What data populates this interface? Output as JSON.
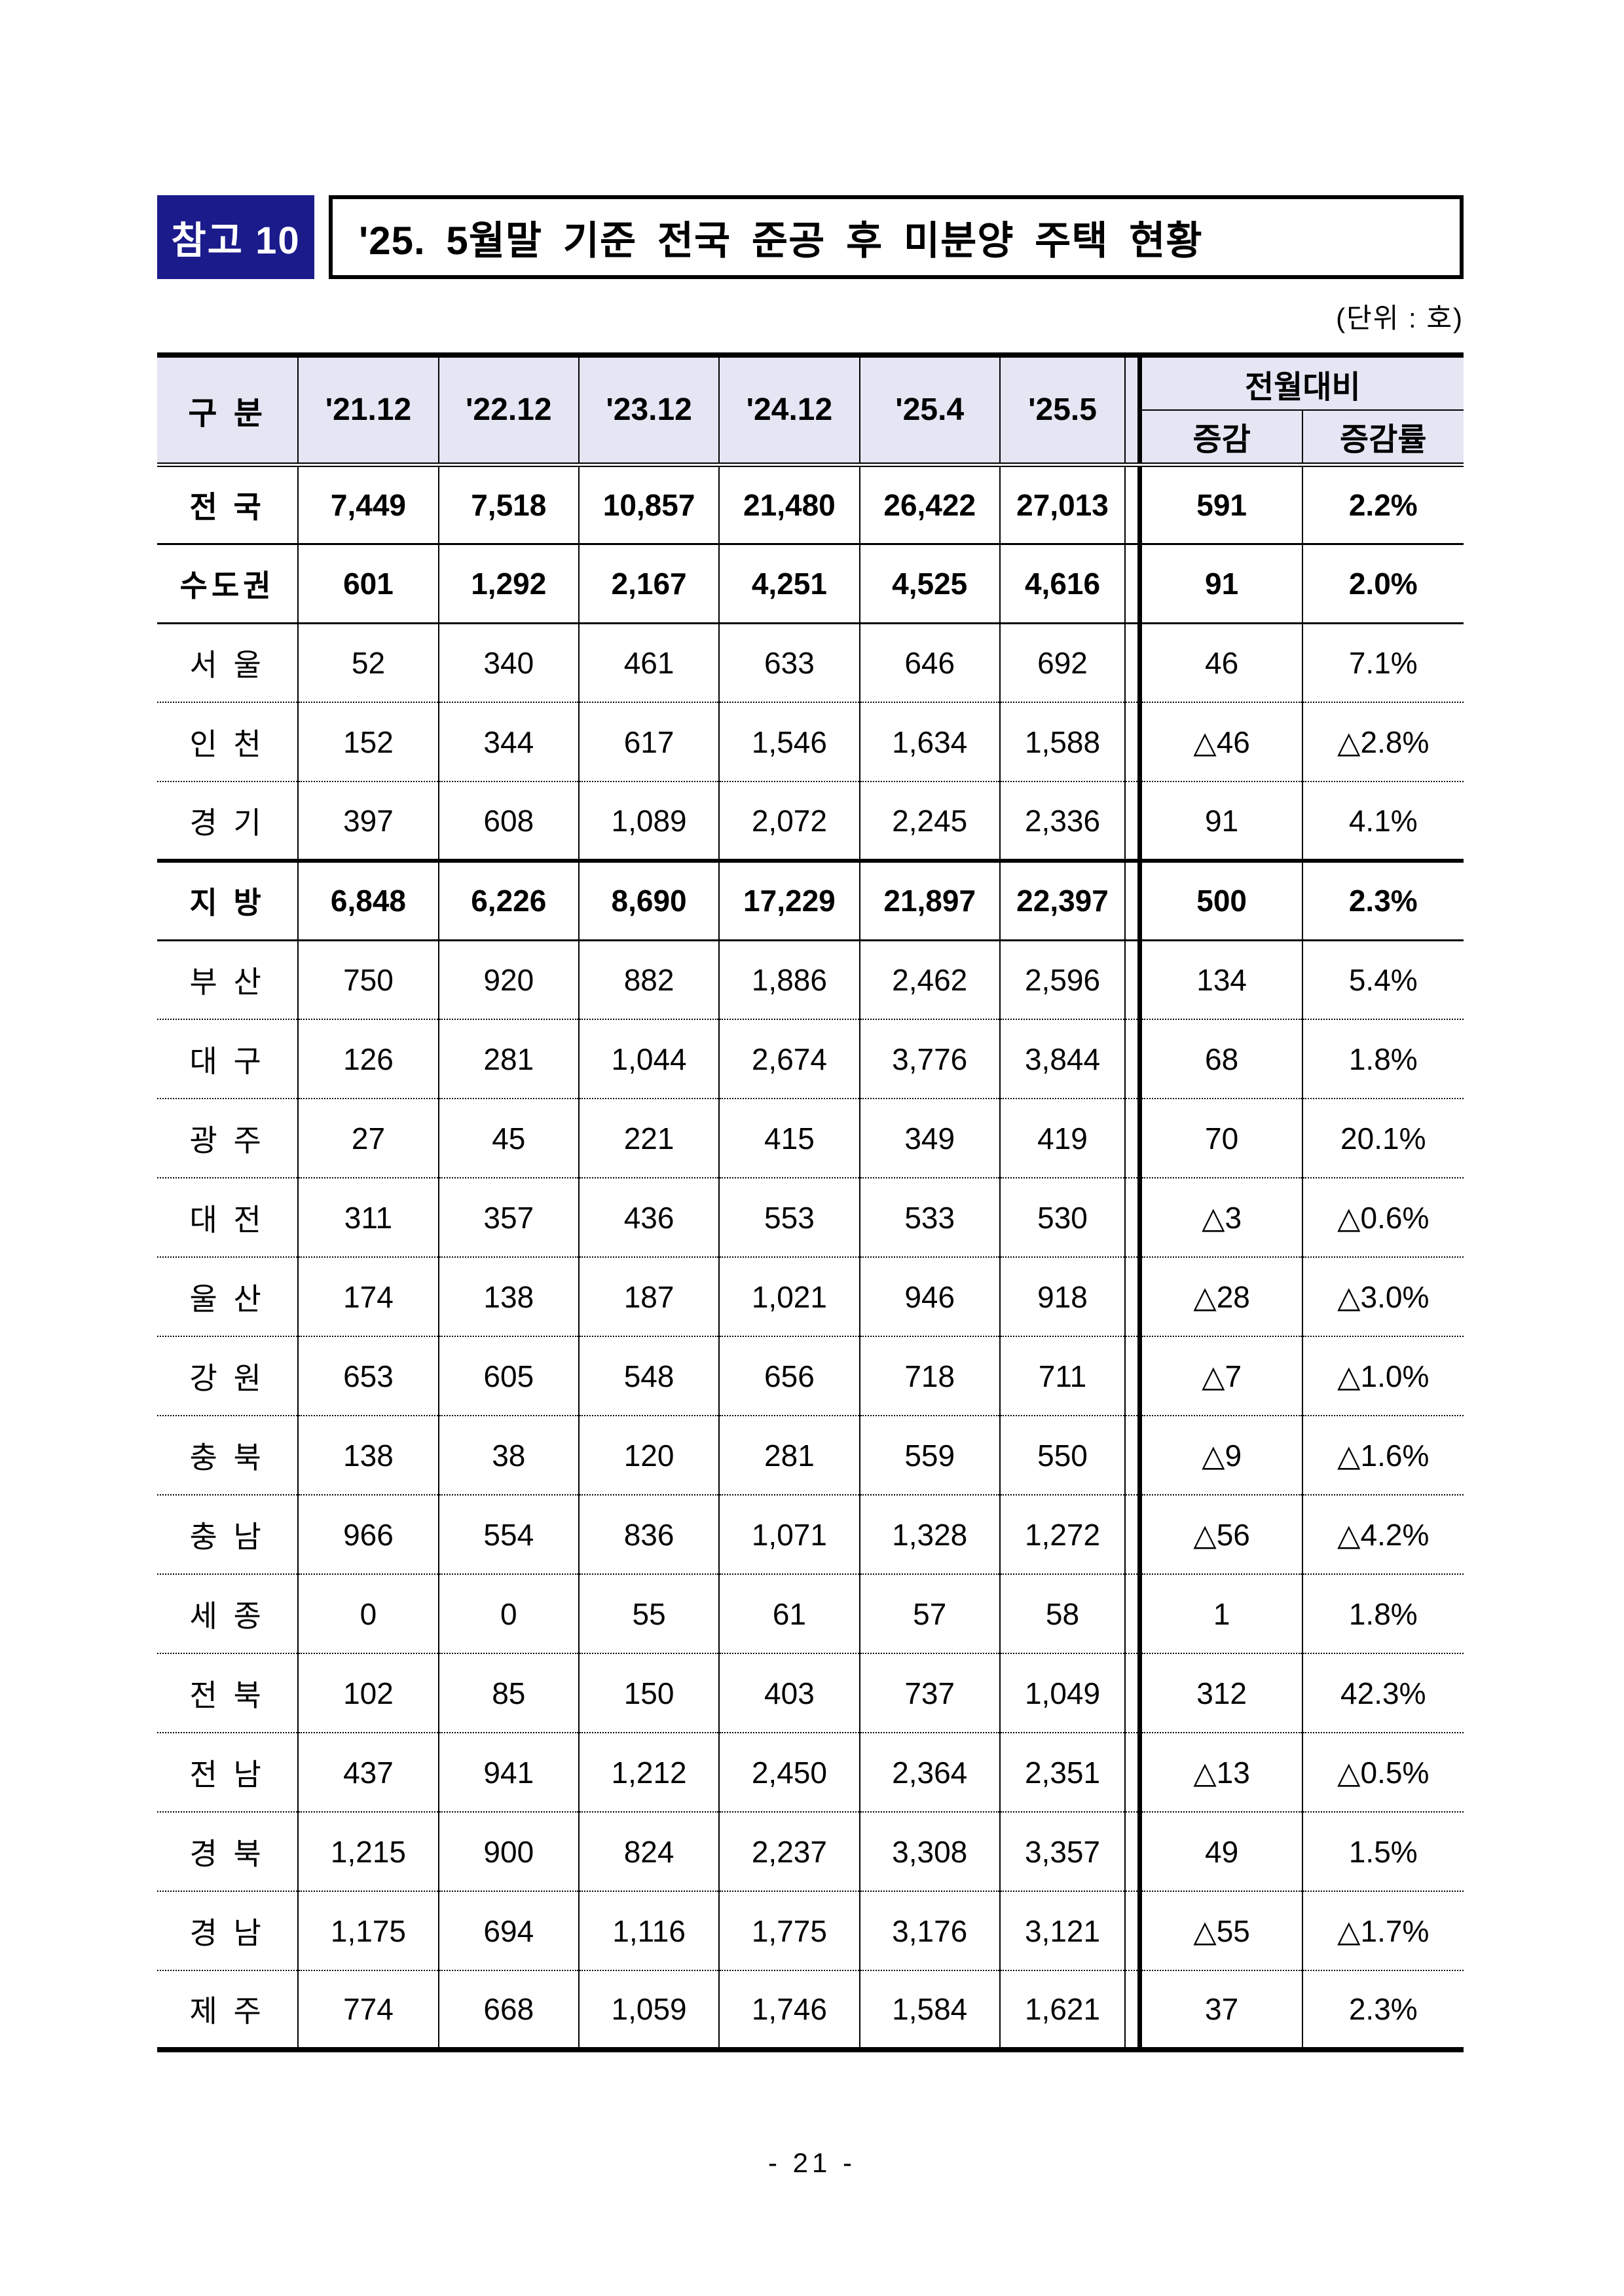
{
  "page": {
    "badge": "참고 10",
    "title": "'25. 5월말 기준 전국 준공 후 미분양 주택 현황",
    "unit_note": "(단위 : 호)",
    "page_number": "- 21 -"
  },
  "colors": {
    "badge_bg": "#1b1b8c",
    "header_bg": "#e4e6f4"
  },
  "table": {
    "header": {
      "col_group": "구 분",
      "periods": [
        "'21.12",
        "'22.12",
        "'23.12",
        "'24.12",
        "'25.4",
        "'25.5"
      ],
      "mom_group": "전월대비",
      "mom_change": "증감",
      "mom_rate": "증감률"
    },
    "rows": [
      {
        "label": "전 국",
        "values": [
          "7,449",
          "7,518",
          "10,857",
          "21,480",
          "26,422",
          "27,013"
        ],
        "change": "591",
        "rate": "2.2%",
        "bold": true,
        "separator": "none"
      },
      {
        "label": "수도권",
        "values": [
          "601",
          "1,292",
          "2,167",
          "4,251",
          "4,525",
          "4,616"
        ],
        "change": "91",
        "rate": "2.0%",
        "bold": true,
        "separator": "solid"
      },
      {
        "label": "서 울",
        "values": [
          "52",
          "340",
          "461",
          "633",
          "646",
          "692"
        ],
        "change": "46",
        "rate": "7.1%",
        "bold": false,
        "separator": "solid"
      },
      {
        "label": "인 천",
        "values": [
          "152",
          "344",
          "617",
          "1,546",
          "1,634",
          "1,588"
        ],
        "change": "△46",
        "rate": "△2.8%",
        "bold": false,
        "separator": "dotted"
      },
      {
        "label": "경 기",
        "values": [
          "397",
          "608",
          "1,089",
          "2,072",
          "2,245",
          "2,336"
        ],
        "change": "91",
        "rate": "4.1%",
        "bold": false,
        "separator": "dotted"
      },
      {
        "label": "지 방",
        "values": [
          "6,848",
          "6,226",
          "8,690",
          "17,229",
          "21,897",
          "22,397"
        ],
        "change": "500",
        "rate": "2.3%",
        "bold": true,
        "separator": "thick"
      },
      {
        "label": "부 산",
        "values": [
          "750",
          "920",
          "882",
          "1,886",
          "2,462",
          "2,596"
        ],
        "change": "134",
        "rate": "5.4%",
        "bold": false,
        "separator": "solid"
      },
      {
        "label": "대 구",
        "values": [
          "126",
          "281",
          "1,044",
          "2,674",
          "3,776",
          "3,844"
        ],
        "change": "68",
        "rate": "1.8%",
        "bold": false,
        "separator": "dotted"
      },
      {
        "label": "광 주",
        "values": [
          "27",
          "45",
          "221",
          "415",
          "349",
          "419"
        ],
        "change": "70",
        "rate": "20.1%",
        "bold": false,
        "separator": "dotted"
      },
      {
        "label": "대 전",
        "values": [
          "311",
          "357",
          "436",
          "553",
          "533",
          "530"
        ],
        "change": "△3",
        "rate": "△0.6%",
        "bold": false,
        "separator": "dotted"
      },
      {
        "label": "울 산",
        "values": [
          "174",
          "138",
          "187",
          "1,021",
          "946",
          "918"
        ],
        "change": "△28",
        "rate": "△3.0%",
        "bold": false,
        "separator": "dotted"
      },
      {
        "label": "강 원",
        "values": [
          "653",
          "605",
          "548",
          "656",
          "718",
          "711"
        ],
        "change": "△7",
        "rate": "△1.0%",
        "bold": false,
        "separator": "dotted"
      },
      {
        "label": "충 북",
        "values": [
          "138",
          "38",
          "120",
          "281",
          "559",
          "550"
        ],
        "change": "△9",
        "rate": "△1.6%",
        "bold": false,
        "separator": "dotted"
      },
      {
        "label": "충 남",
        "values": [
          "966",
          "554",
          "836",
          "1,071",
          "1,328",
          "1,272"
        ],
        "change": "△56",
        "rate": "△4.2%",
        "bold": false,
        "separator": "dotted"
      },
      {
        "label": "세 종",
        "values": [
          "0",
          "0",
          "55",
          "61",
          "57",
          "58"
        ],
        "change": "1",
        "rate": "1.8%",
        "bold": false,
        "separator": "dotted"
      },
      {
        "label": "전 북",
        "values": [
          "102",
          "85",
          "150",
          "403",
          "737",
          "1,049"
        ],
        "change": "312",
        "rate": "42.3%",
        "bold": false,
        "separator": "dotted"
      },
      {
        "label": "전 남",
        "values": [
          "437",
          "941",
          "1,212",
          "2,450",
          "2,364",
          "2,351"
        ],
        "change": "△13",
        "rate": "△0.5%",
        "bold": false,
        "separator": "dotted"
      },
      {
        "label": "경 북",
        "values": [
          "1,215",
          "900",
          "824",
          "2,237",
          "3,308",
          "3,357"
        ],
        "change": "49",
        "rate": "1.5%",
        "bold": false,
        "separator": "dotted"
      },
      {
        "label": "경 남",
        "values": [
          "1,175",
          "694",
          "1,116",
          "1,775",
          "3,176",
          "3,121"
        ],
        "change": "△55",
        "rate": "△1.7%",
        "bold": false,
        "separator": "dotted"
      },
      {
        "label": "제 주",
        "values": [
          "774",
          "668",
          "1,059",
          "1,746",
          "1,584",
          "1,621"
        ],
        "change": "37",
        "rate": "2.3%",
        "bold": false,
        "separator": "dotted"
      }
    ]
  }
}
